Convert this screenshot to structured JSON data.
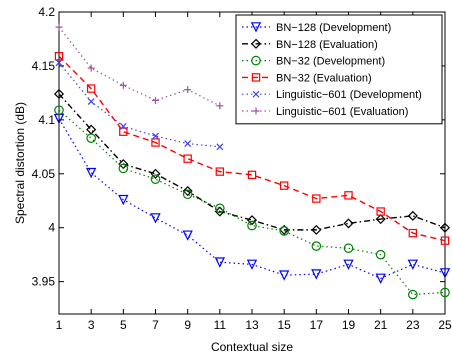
{
  "chart_data": {
    "type": "line",
    "xlabel": "Contextual size",
    "ylabel": "Spectral distortion (dB)",
    "xlim": [
      1,
      25
    ],
    "ylim": [
      3.92,
      4.2
    ],
    "xticks": [
      1,
      3,
      5,
      7,
      9,
      11,
      13,
      15,
      17,
      19,
      21,
      23,
      25
    ],
    "yticks": [
      3.95,
      4.0,
      4.05,
      4.1,
      4.15,
      4.2
    ],
    "ytick_labels": [
      "3.95",
      "4",
      "4.05",
      "4.1",
      "4.15",
      "4.2"
    ],
    "grid": false,
    "legend_position": "top-right",
    "series": [
      {
        "name": "BN−128 (Development)",
        "color": "#0000ff",
        "marker": "triangle-down",
        "line": "dotted",
        "x": [
          1,
          3,
          5,
          7,
          9,
          11,
          13,
          15,
          17,
          19,
          21,
          23,
          25
        ],
        "y": [
          4.101,
          4.051,
          4.026,
          4.009,
          3.993,
          3.968,
          3.966,
          3.956,
          3.957,
          3.966,
          3.953,
          3.966,
          3.958
        ]
      },
      {
        "name": "BN−128 (Evaluation)",
        "color": "#000000",
        "marker": "diamond",
        "line": "dashdot",
        "x": [
          1,
          3,
          5,
          7,
          9,
          11,
          13,
          15,
          17,
          19,
          21,
          23,
          25
        ],
        "y": [
          4.124,
          4.091,
          4.059,
          4.05,
          4.034,
          4.015,
          4.007,
          3.998,
          3.998,
          4.004,
          4.008,
          4.011,
          4.0
        ]
      },
      {
        "name": "BN−32 (Development)",
        "color": "#008000",
        "marker": "circle",
        "line": "dotted",
        "x": [
          1,
          3,
          5,
          7,
          9,
          11,
          13,
          15,
          17,
          19,
          21,
          23,
          25
        ],
        "y": [
          4.109,
          4.083,
          4.055,
          4.045,
          4.031,
          4.018,
          4.002,
          3.997,
          3.983,
          3.981,
          3.975,
          3.938,
          3.94
        ]
      },
      {
        "name": "BN−32 (Evaluation)",
        "color": "#ff0000",
        "marker": "square",
        "line": "dashed",
        "x": [
          1,
          3,
          5,
          7,
          9,
          11,
          13,
          15,
          17,
          19,
          21,
          23,
          25
        ],
        "y": [
          4.159,
          4.129,
          4.089,
          4.079,
          4.064,
          4.052,
          4.049,
          4.039,
          4.027,
          4.03,
          4.015,
          3.995,
          3.988
        ]
      },
      {
        "name": "Linguistic−601 (Development)",
        "color": "#4040ff",
        "marker": "x",
        "line": "dotted",
        "x": [
          1,
          3,
          5,
          7,
          9,
          11
        ],
        "y": [
          4.153,
          4.117,
          4.094,
          4.085,
          4.078,
          4.075
        ]
      },
      {
        "name": "Linguistic−601 (Evaluation)",
        "color": "#a050a0",
        "marker": "plus",
        "line": "dotted",
        "x": [
          1,
          3,
          5,
          7,
          9,
          11
        ],
        "y": [
          4.186,
          4.148,
          4.132,
          4.118,
          4.128,
          4.113
        ]
      }
    ]
  }
}
